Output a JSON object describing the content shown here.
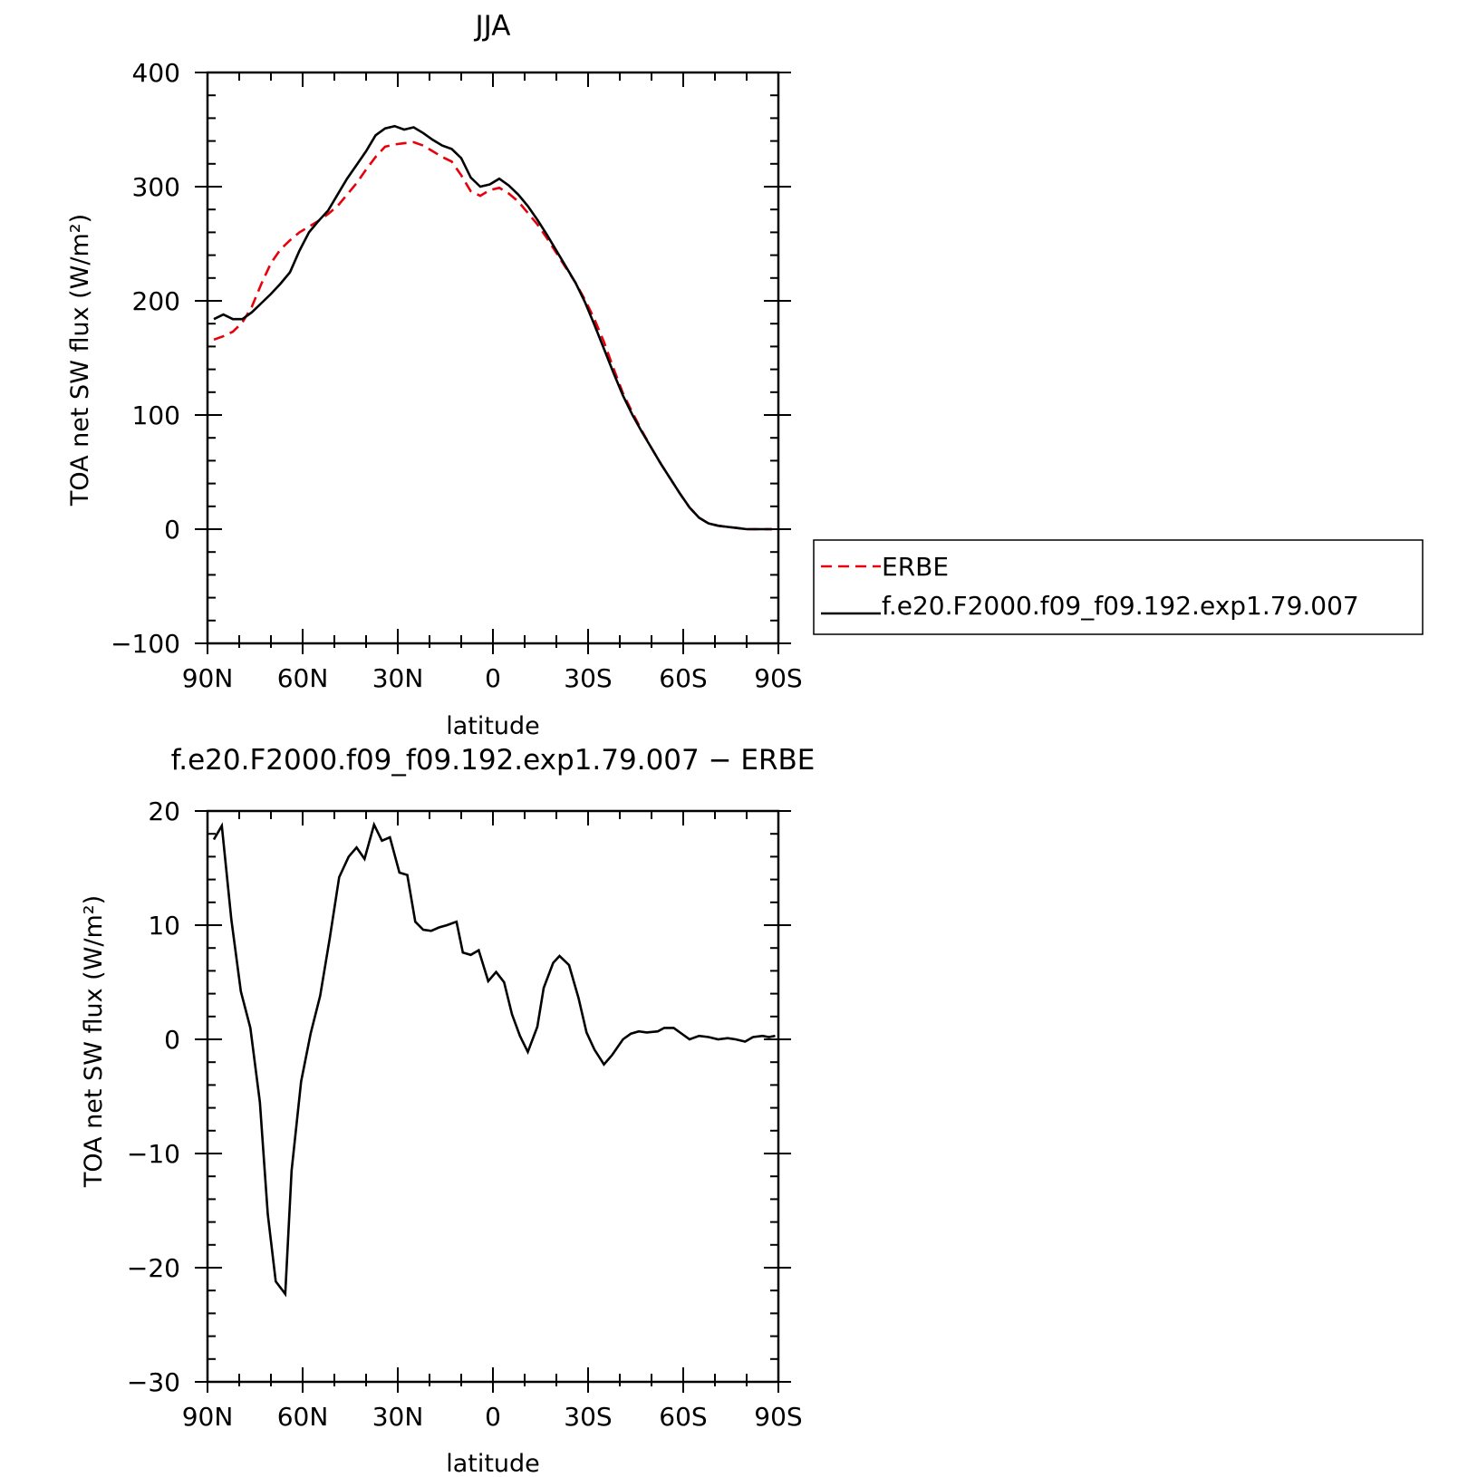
{
  "colors": {
    "erbe": "#e8000b",
    "model": "#000000",
    "frame": "#000000",
    "background": "#ffffff"
  },
  "chart_data": [
    {
      "type": "line",
      "title": "JJA",
      "xlabel": "latitude",
      "ylabel": "TOA net SW flux (W/m²)",
      "xlim": [
        90,
        -90
      ],
      "ylim": [
        -100,
        400
      ],
      "x_ticks": [
        90,
        60,
        30,
        0,
        -30,
        -60,
        -90
      ],
      "x_tick_labels": [
        "90N",
        "60N",
        "30N",
        "0",
        "30S",
        "60S",
        "90S"
      ],
      "y_ticks": [
        400,
        300,
        200,
        100,
        0,
        -100
      ],
      "y_tick_labels": [
        "400",
        "300",
        "200",
        "100",
        "0",
        "−100"
      ],
      "legend": {
        "placement": "outside-right",
        "entries": [
          "ERBE",
          "f.e20.F2000.f09_f09.192.exp1.79.007"
        ]
      },
      "series": [
        {
          "name": "ERBE",
          "style": "dashed",
          "color": "#e8000b",
          "x": [
            88,
            85,
            82,
            79,
            76,
            73,
            70,
            67,
            64,
            61,
            58,
            55,
            52,
            49,
            46,
            43,
            40,
            37,
            34,
            31,
            28,
            25,
            22,
            19,
            16,
            13,
            10,
            7,
            4,
            1,
            -2,
            -5,
            -8,
            -11,
            -14,
            -17,
            -20,
            -23,
            -26,
            -29,
            -32,
            -35,
            -38,
            -41,
            -44,
            -47,
            -50,
            -53,
            -56,
            -59,
            -62,
            -65,
            -68,
            -71,
            -74,
            -77,
            -80,
            -83,
            -86,
            -88
          ],
          "y": [
            166,
            169,
            173,
            181,
            195,
            215,
            233,
            245,
            253,
            260,
            265,
            270,
            276,
            283,
            293,
            303,
            315,
            326,
            335,
            337,
            338,
            339,
            336,
            331,
            326,
            322,
            310,
            296,
            292,
            297,
            299,
            294,
            287,
            277,
            267,
            255,
            242,
            229,
            216,
            201,
            184,
            164,
            141,
            119,
            102,
            86,
            71,
            57,
            44,
            31,
            19,
            10,
            5,
            3,
            2,
            1,
            0,
            0,
            0,
            0
          ]
        },
        {
          "name": "f.e20.F2000.f09_f09.192.exp1.79.007",
          "style": "solid",
          "color": "#000000",
          "x": [
            88,
            85,
            82,
            79,
            76,
            73,
            70,
            67,
            64,
            61,
            58,
            55,
            52,
            49,
            46,
            43,
            40,
            37,
            34,
            31,
            28,
            25,
            22,
            19,
            16,
            13,
            10,
            7,
            4,
            1,
            -2,
            -5,
            -8,
            -11,
            -14,
            -17,
            -20,
            -23,
            -26,
            -29,
            -32,
            -35,
            -38,
            -41,
            -44,
            -47,
            -50,
            -53,
            -56,
            -59,
            -62,
            -65,
            -68,
            -71,
            -74,
            -77,
            -80,
            -83,
            -86,
            -88
          ],
          "y": [
            184,
            188,
            184,
            184,
            190,
            198,
            206,
            215,
            225,
            244,
            260,
            270,
            279,
            293,
            307,
            319,
            331,
            345,
            351,
            353,
            350,
            352,
            347,
            341,
            336,
            333,
            325,
            308,
            300,
            302,
            307,
            301,
            293,
            283,
            271,
            258,
            244,
            230,
            216,
            199,
            179,
            158,
            137,
            117,
            100,
            85,
            71,
            57,
            44,
            31,
            19,
            10,
            5,
            3,
            2,
            1,
            0,
            0,
            0,
            0
          ]
        }
      ]
    },
    {
      "type": "line",
      "title": "f.e20.F2000.f09_f09.192.exp1.79.007 − ERBE",
      "xlabel": "latitude",
      "ylabel": "TOA net SW flux (W/m²)",
      "xlim": [
        90,
        -90
      ],
      "ylim": [
        -30,
        20
      ],
      "x_ticks": [
        90,
        60,
        30,
        0,
        -30,
        -60,
        -90
      ],
      "x_tick_labels": [
        "90N",
        "60N",
        "30N",
        "0",
        "30S",
        "60S",
        "90S"
      ],
      "y_ticks": [
        20,
        10,
        0,
        -10,
        -20,
        -30
      ],
      "y_tick_labels": [
        "20",
        "10",
        "0",
        "−10",
        "−20",
        "−30"
      ],
      "series": [
        {
          "style": "solid",
          "color": "#000000",
          "x": [
            88,
            85.5,
            82.5,
            79.5,
            76.5,
            73.5,
            71,
            68.5,
            65.5,
            63.5,
            60.5,
            57.5,
            54.5,
            51.5,
            48.5,
            45.5,
            43,
            40.5,
            37.5,
            35,
            32.5,
            29.5,
            27,
            24.5,
            22,
            19.5,
            17,
            14.5,
            11.5,
            9.5,
            7,
            4.5,
            1.5,
            -1,
            -3.5,
            -6,
            -8.5,
            -11,
            -14,
            -16,
            -19,
            -21,
            -24,
            -27,
            -29.5,
            -32,
            -35,
            -37.5,
            -41,
            -43.5,
            -46,
            -48.5,
            -52,
            -54,
            -57,
            -60,
            -62,
            -65,
            -68,
            -71,
            -74,
            -76.5,
            -79.5,
            -82,
            -85,
            -87,
            -89
          ],
          "y": [
            17.5,
            18.7,
            10.5,
            4.2,
            1.0,
            -5.5,
            -15.3,
            -21.2,
            -22.3,
            -11.5,
            -3.7,
            0.5,
            3.8,
            8.8,
            14.2,
            16.0,
            16.8,
            15.8,
            18.8,
            17.4,
            17.7,
            14.6,
            14.4,
            10.3,
            9.6,
            9.5,
            9.8,
            10.0,
            10.3,
            7.6,
            7.4,
            7.8,
            5.1,
            5.9,
            5.0,
            2.2,
            0.3,
            -1.1,
            1.1,
            4.5,
            6.7,
            7.3,
            6.5,
            3.6,
            0.6,
            -0.9,
            -2.2,
            -1.4,
            0.0,
            0.5,
            0.7,
            0.6,
            0.7,
            1.0,
            1.0,
            0.4,
            0.0,
            0.3,
            0.2,
            0.0,
            0.1,
            0.0,
            -0.2,
            0.2,
            0.3,
            0.2,
            0.3
          ]
        }
      ]
    }
  ]
}
